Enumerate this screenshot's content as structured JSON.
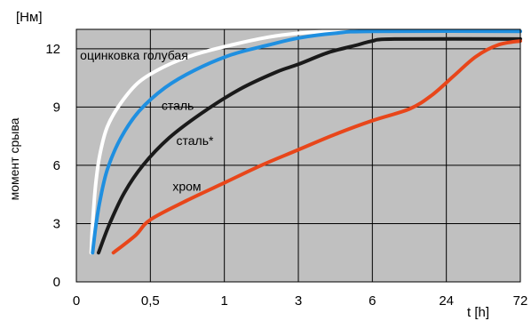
{
  "chart_data": {
    "type": "line",
    "title": "",
    "ylabel": "момент срыва",
    "yunit": "[Нм]",
    "xlabel": "t [h]",
    "ylim": [
      0,
      13
    ],
    "yticks": [
      0,
      3,
      6,
      9,
      12
    ],
    "x_categories": [
      "0",
      "0,5",
      "1",
      "3",
      "6",
      "24",
      "72"
    ],
    "grid": true,
    "background_color": "#c0c0c0",
    "series": [
      {
        "name": "оцинковка голубая",
        "color": "#ffffff",
        "points": [
          [
            0.2,
            1.5
          ],
          [
            0.22,
            3.0
          ],
          [
            0.26,
            5.0
          ],
          [
            0.32,
            6.6
          ],
          [
            0.42,
            8.0
          ],
          [
            0.6,
            9.2
          ],
          [
            0.85,
            10.3
          ],
          [
            1.2,
            11.1
          ],
          [
            1.6,
            11.7
          ],
          [
            2.1,
            12.2
          ],
          [
            2.6,
            12.6
          ],
          [
            3.0,
            12.8
          ],
          [
            3.4,
            12.9
          ],
          [
            4.0,
            12.95
          ],
          [
            6.0,
            12.95
          ]
        ]
      },
      {
        "name": "сталь",
        "color": "#1f8fe0",
        "points": [
          [
            0.22,
            1.5
          ],
          [
            0.26,
            2.8
          ],
          [
            0.32,
            4.2
          ],
          [
            0.42,
            5.8
          ],
          [
            0.6,
            7.4
          ],
          [
            0.85,
            8.8
          ],
          [
            1.2,
            10.0
          ],
          [
            1.6,
            10.9
          ],
          [
            2.1,
            11.7
          ],
          [
            2.6,
            12.2
          ],
          [
            3.0,
            12.55
          ],
          [
            3.5,
            12.8
          ],
          [
            4.0,
            12.9
          ],
          [
            6.0,
            12.9
          ]
        ]
      },
      {
        "name": "сталь*",
        "color": "#1a1a1a",
        "points": [
          [
            0.3,
            1.5
          ],
          [
            0.45,
            3.0
          ],
          [
            0.65,
            4.6
          ],
          [
            0.9,
            6.0
          ],
          [
            1.25,
            7.4
          ],
          [
            1.7,
            8.7
          ],
          [
            2.2,
            9.9
          ],
          [
            2.7,
            10.8
          ],
          [
            3.0,
            11.2
          ],
          [
            3.4,
            11.8
          ],
          [
            3.8,
            12.2
          ],
          [
            4.0,
            12.4
          ],
          [
            4.3,
            12.5
          ],
          [
            6.0,
            12.5
          ]
        ]
      },
      {
        "name": "хром",
        "color": "#e8461a",
        "points": [
          [
            0.5,
            1.5
          ],
          [
            0.8,
            2.4
          ],
          [
            1.0,
            3.2
          ],
          [
            1.5,
            4.2
          ],
          [
            2.0,
            5.1
          ],
          [
            2.5,
            6.0
          ],
          [
            3.0,
            6.8
          ],
          [
            3.5,
            7.6
          ],
          [
            4.0,
            8.3
          ],
          [
            4.5,
            8.9
          ],
          [
            4.8,
            9.6
          ],
          [
            5.1,
            10.6
          ],
          [
            5.4,
            11.6
          ],
          [
            5.7,
            12.2
          ],
          [
            6.0,
            12.4
          ]
        ]
      }
    ],
    "labels": [
      {
        "text": "оцинковка голубая",
        "series": "оцинковка голубая",
        "x": 0.05,
        "y": 11.45
      },
      {
        "text": "сталь",
        "series": "сталь",
        "x": 1.15,
        "y": 8.85
      },
      {
        "text": "сталь*",
        "series": "сталь*",
        "x": 1.35,
        "y": 7.05
      },
      {
        "text": "хром",
        "series": "хром",
        "x": 1.3,
        "y": 4.7
      }
    ]
  }
}
